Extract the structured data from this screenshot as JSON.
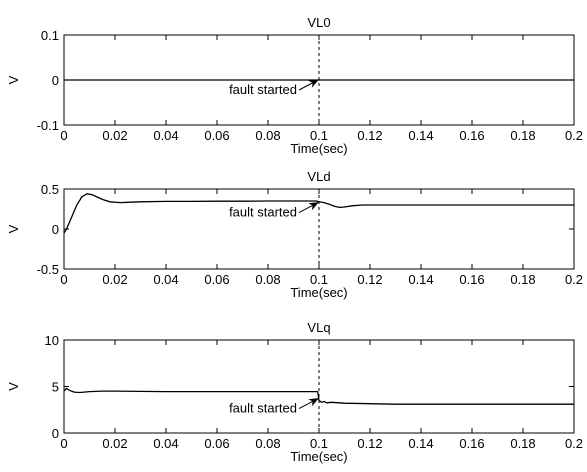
{
  "chart_data": [
    {
      "type": "line",
      "title": "VL0",
      "xlabel": "Time(sec)",
      "ylabel": "V",
      "xlim": [
        0,
        0.2
      ],
      "ylim": [
        -0.1,
        0.1
      ],
      "xticks": [
        "0",
        "0.02",
        "0.04",
        "0.06",
        "0.08",
        "0.1",
        "0.12",
        "0.14",
        "0.16",
        "0.18",
        "0.2"
      ],
      "yticks": [
        "-0.1",
        "0",
        "0.1"
      ],
      "grid": false,
      "fault_time": 0.1,
      "annotation": {
        "text": "fault started",
        "x": 0.1,
        "y": 0
      },
      "series": [
        {
          "x": [
            0,
            0.2
          ],
          "y": [
            0,
            0
          ]
        }
      ]
    },
    {
      "type": "line",
      "title": "VLd",
      "xlabel": "Time(sec)",
      "ylabel": "V",
      "xlim": [
        0,
        0.2
      ],
      "ylim": [
        -0.5,
        0.5
      ],
      "xticks": [
        "0",
        "0.02",
        "0.04",
        "0.06",
        "0.08",
        "0.1",
        "0.12",
        "0.14",
        "0.16",
        "0.18",
        "0.2"
      ],
      "yticks": [
        "-0.5",
        "0",
        "0.5"
      ],
      "grid": false,
      "fault_time": 0.1,
      "annotation": {
        "text": "fault started",
        "x": 0.1,
        "y": 0.33
      },
      "series": [
        {
          "x": [
            0,
            0.001,
            0.003,
            0.005,
            0.007,
            0.009,
            0.011,
            0.013,
            0.015,
            0.018,
            0.022,
            0.03,
            0.04,
            0.05,
            0.06,
            0.07,
            0.08,
            0.09,
            0.099,
            0.1,
            0.102,
            0.104,
            0.106,
            0.108,
            0.11,
            0.113,
            0.117,
            0.12,
            0.13,
            0.15,
            0.2
          ],
          "y": [
            -0.05,
            0.0,
            0.15,
            0.3,
            0.4,
            0.44,
            0.43,
            0.4,
            0.37,
            0.34,
            0.33,
            0.34,
            0.345,
            0.345,
            0.348,
            0.348,
            0.35,
            0.35,
            0.35,
            0.34,
            0.33,
            0.31,
            0.285,
            0.27,
            0.275,
            0.29,
            0.3,
            0.3,
            0.3,
            0.3,
            0.3
          ]
        }
      ]
    },
    {
      "type": "line",
      "title": "VLq",
      "xlabel": "Time(sec)",
      "ylabel": "V",
      "xlim": [
        0,
        0.2
      ],
      "ylim": [
        0,
        10
      ],
      "xticks": [
        "0",
        "0.02",
        "0.04",
        "0.06",
        "0.08",
        "0.1",
        "0.12",
        "0.14",
        "0.16",
        "0.18",
        "0.2"
      ],
      "yticks": [
        "0",
        "5",
        "10"
      ],
      "grid": false,
      "fault_time": 0.1,
      "annotation": {
        "text": "fault started",
        "x": 0.1,
        "y": 3.7
      },
      "series": [
        {
          "x": [
            0,
            0.001,
            0.002,
            0.004,
            0.006,
            0.008,
            0.01,
            0.015,
            0.02,
            0.04,
            0.06,
            0.08,
            0.0995,
            0.1,
            0.101,
            0.102,
            0.103,
            0.105,
            0.11,
            0.13,
            0.2
          ],
          "y": [
            4.5,
            4.8,
            4.6,
            4.4,
            4.35,
            4.4,
            4.45,
            4.5,
            4.5,
            4.45,
            4.45,
            4.45,
            4.45,
            3.5,
            3.3,
            3.4,
            3.25,
            3.3,
            3.2,
            3.1,
            3.1
          ]
        }
      ]
    }
  ]
}
